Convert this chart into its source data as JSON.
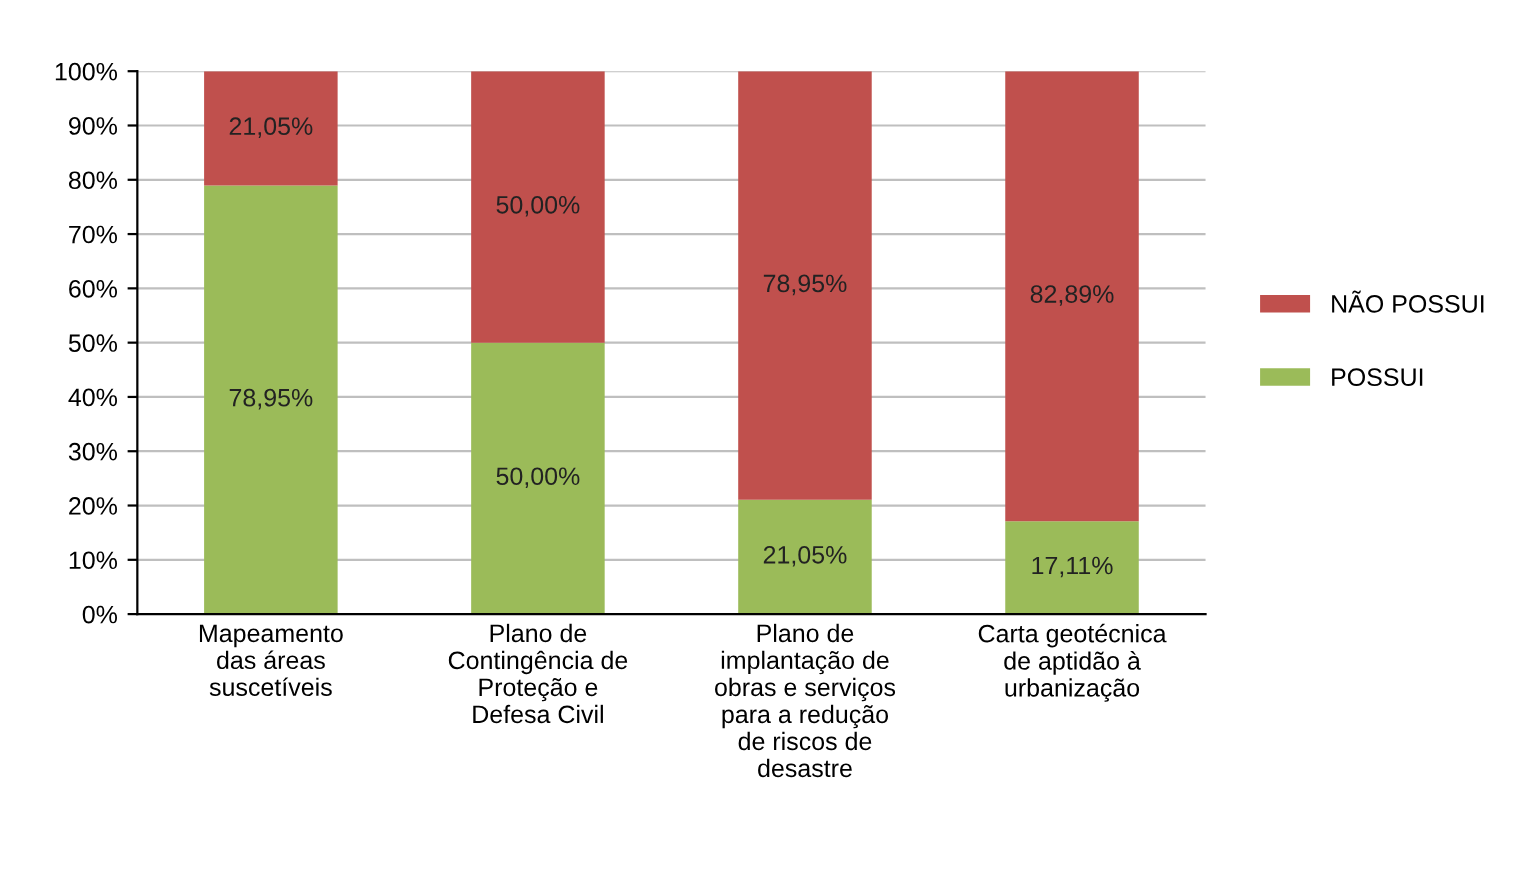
{
  "chart_data": {
    "type": "bar",
    "stacked": true,
    "categories": [
      "Mapeamento\ndas áreas\nsuscetíveis",
      "Plano de\nContingência de\nProteção e\nDefesa Civil",
      "Plano de\nimplantação de\nobras e serviços\npara a redução\nde riscos de\ndesastre",
      "Carta geotécnica\nde aptidão à\nurbanização"
    ],
    "series": [
      {
        "name": "POSSUI",
        "color": "#9bbb59",
        "values": [
          78.95,
          50.0,
          21.05,
          17.11
        ],
        "value_labels": [
          "78,95%",
          "50,00%",
          "21,05%",
          "17,11%"
        ]
      },
      {
        "name": "NÃO POSSUI",
        "color": "#c0504d",
        "values": [
          21.05,
          50.0,
          78.95,
          82.89
        ],
        "value_labels": [
          "21,05%",
          "50,00%",
          "78,95%",
          "82,89%"
        ]
      }
    ],
    "ylim": [
      0,
      100
    ],
    "yticks": [
      {
        "value": 0,
        "label": "0%"
      },
      {
        "value": 10,
        "label": "10%"
      },
      {
        "value": 20,
        "label": "20%"
      },
      {
        "value": 30,
        "label": "30%"
      },
      {
        "value": 40,
        "label": "40%"
      },
      {
        "value": 50,
        "label": "50%"
      },
      {
        "value": 60,
        "label": "60%"
      },
      {
        "value": 70,
        "label": "70%"
      },
      {
        "value": 80,
        "label": "80%"
      },
      {
        "value": 90,
        "label": "90%"
      },
      {
        "value": 100,
        "label": "100%"
      }
    ],
    "grid": "y",
    "legend": "right"
  }
}
